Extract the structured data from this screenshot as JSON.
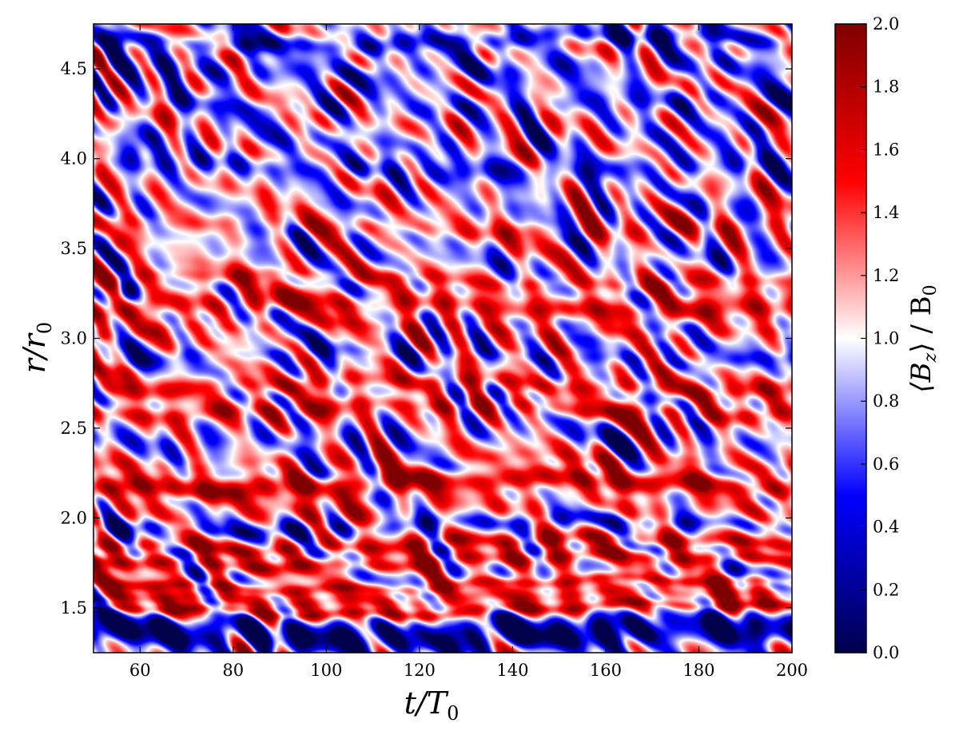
{
  "chart_data": {
    "type": "heatmap",
    "title": "",
    "xlabel": "t/T",
    "xlabel_sub": "0",
    "ylabel": "r/r",
    "ylabel_sub": "0",
    "xlim": [
      50,
      200
    ],
    "ylim": [
      1.25,
      4.75
    ],
    "xticks": [
      60,
      80,
      100,
      120,
      140,
      160,
      180,
      200
    ],
    "xtick_labels": [
      "60",
      "80",
      "100",
      "120",
      "140",
      "160",
      "180",
      "200"
    ],
    "yticks": [
      1.5,
      2.0,
      2.5,
      3.0,
      3.5,
      4.0,
      4.5
    ],
    "ytick_labels": [
      "1.5",
      "2.0",
      "2.5",
      "3.0",
      "3.5",
      "4.0",
      "4.5"
    ],
    "colorscale": "seismic",
    "colormap_colors": [
      "#00004c",
      "#0000ff",
      "#ffffff",
      "#ff0000",
      "#7f0000"
    ],
    "colorbar": {
      "label": "⟨B",
      "label_sub_z": "z",
      "label_mid": "⟩ / B",
      "label_sub_0": "0",
      "range": [
        0.0,
        2.0
      ],
      "ticks": [
        0.0,
        0.2,
        0.4,
        0.6,
        0.8,
        1.0,
        1.2,
        1.4,
        1.6,
        1.8,
        2.0
      ],
      "tick_labels": [
        "0.0",
        "0.2",
        "0.4",
        "0.6",
        "0.8",
        "1.0",
        "1.2",
        "1.4",
        "1.6",
        "1.8",
        "2.0"
      ]
    },
    "bands": [
      {
        "r": 1.33,
        "width": 0.06,
        "value": 0.25
      },
      {
        "r": 1.4,
        "width": 0.05,
        "value": 0.45
      },
      {
        "r": 1.49,
        "width": 0.03,
        "value": 1.55
      },
      {
        "r": 1.56,
        "width": 0.04,
        "value": 1.35
      },
      {
        "r": 1.63,
        "width": 0.03,
        "value": 1.5
      },
      {
        "r": 1.76,
        "width": 0.04,
        "value": 1.6
      },
      {
        "r": 1.86,
        "width": 0.04,
        "value": 1.55
      },
      {
        "r": 1.96,
        "width": 0.04,
        "value": 0.6
      },
      {
        "r": 2.06,
        "width": 0.05,
        "value": 1.2
      },
      {
        "r": 2.19,
        "width": 0.06,
        "value": 1.75
      },
      {
        "r": 2.32,
        "width": 0.04,
        "value": 1.2
      },
      {
        "r": 2.45,
        "width": 0.05,
        "value": 0.8
      },
      {
        "r": 2.6,
        "width": 0.05,
        "value": 1.5
      },
      {
        "r": 2.74,
        "width": 0.05,
        "value": 1.45
      },
      {
        "r": 2.9,
        "width": 0.04,
        "value": 0.75
      },
      {
        "r": 3.05,
        "width": 0.04,
        "value": 1.2
      },
      {
        "r": 3.18,
        "width": 0.06,
        "value": 1.55
      },
      {
        "r": 3.33,
        "width": 0.04,
        "value": 1.3
      },
      {
        "r": 3.45,
        "width": 0.04,
        "value": 0.9
      },
      {
        "r": 3.62,
        "width": 0.05,
        "value": 1.3
      },
      {
        "r": 3.75,
        "width": 0.04,
        "value": 0.9
      },
      {
        "r": 3.95,
        "width": 0.06,
        "value": 0.65
      },
      {
        "r": 4.12,
        "width": 0.05,
        "value": 0.85
      },
      {
        "r": 4.3,
        "width": 0.05,
        "value": 0.75
      },
      {
        "r": 4.5,
        "width": 0.06,
        "value": 0.7
      },
      {
        "r": 4.66,
        "width": 0.05,
        "value": 0.45
      }
    ],
    "early_time_features": [
      {
        "t": 51,
        "r": 3.0,
        "value": 1.8
      },
      {
        "t": 51,
        "r": 3.95,
        "value": 1.6
      },
      {
        "t": 51,
        "r": 4.55,
        "value": 1.7
      },
      {
        "t": 55,
        "r": 4.2,
        "value": 1.6
      },
      {
        "t": 55,
        "r": 3.5,
        "value": 1.5
      },
      {
        "t": 57,
        "r": 3.25,
        "value": 0.15
      },
      {
        "t": 59,
        "r": 4.05,
        "value": 0.45
      },
      {
        "t": 54,
        "r": 4.6,
        "value": 0.3
      }
    ]
  }
}
